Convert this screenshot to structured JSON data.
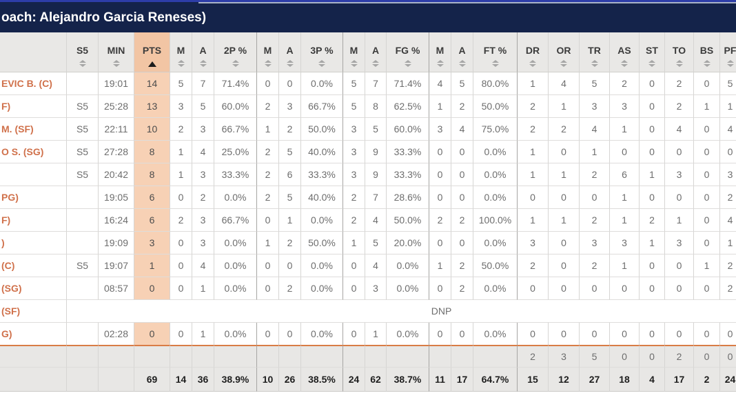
{
  "title_bar": {
    "title": "oach: Alejandro Garcia Reneses)"
  },
  "colors": {
    "navy": "#14234a",
    "top_blue": "#2d3da8",
    "light_line": "#a9b3c6",
    "header_bg": "#e9e8e6",
    "pts_header_bg": "#f2c5a4",
    "pts_cell_bg": "#f7d1b5",
    "name_orange": "#d0714b",
    "gray_bg": "#e8e7e5",
    "orange_divider": "#d97c45",
    "border_normal": "#d6d5d3",
    "border_group": "#a6a5a3",
    "row_line": "#dedddb"
  },
  "table": {
    "sorted_column": "PTS",
    "sort_direction": "asc",
    "column_labels": {
      "name": "",
      "s5": "S5",
      "min": "MIN",
      "pts": "PTS",
      "m": "M",
      "a": "A",
      "p2": "2P %",
      "p3": "3P %",
      "fg": "FG %",
      "ft": "FT %",
      "dr": "DR",
      "or": "OR",
      "tr": "TR",
      "as": "AS",
      "st": "ST",
      "to": "TO",
      "bs": "BS",
      "pf": "PF"
    },
    "dnp_label": "DNP",
    "players": [
      {
        "name": "EVIC B. (C)",
        "s5": "",
        "min": "19:01",
        "pts": "14",
        "stats": [
          "5",
          "7",
          "71.4%",
          "0",
          "0",
          "0.0%",
          "5",
          "7",
          "71.4%",
          "4",
          "5",
          "80.0%",
          "1",
          "4",
          "5",
          "2",
          "0",
          "2",
          "0",
          "5"
        ]
      },
      {
        "name": "F)",
        "s5": "S5",
        "min": "25:28",
        "pts": "13",
        "stats": [
          "3",
          "5",
          "60.0%",
          "2",
          "3",
          "66.7%",
          "5",
          "8",
          "62.5%",
          "1",
          "2",
          "50.0%",
          "2",
          "1",
          "3",
          "3",
          "0",
          "2",
          "1",
          "1"
        ]
      },
      {
        "name": "M. (SF)",
        "s5": "S5",
        "min": "22:11",
        "pts": "10",
        "stats": [
          "2",
          "3",
          "66.7%",
          "1",
          "2",
          "50.0%",
          "3",
          "5",
          "60.0%",
          "3",
          "4",
          "75.0%",
          "2",
          "2",
          "4",
          "1",
          "0",
          "4",
          "0",
          "4"
        ]
      },
      {
        "name": "O S. (SG)",
        "s5": "S5",
        "min": "27:28",
        "pts": "8",
        "stats": [
          "1",
          "4",
          "25.0%",
          "2",
          "5",
          "40.0%",
          "3",
          "9",
          "33.3%",
          "0",
          "0",
          "0.0%",
          "1",
          "0",
          "1",
          "0",
          "0",
          "0",
          "0",
          "0"
        ]
      },
      {
        "name": "",
        "s5": "S5",
        "min": "20:42",
        "pts": "8",
        "stats": [
          "1",
          "3",
          "33.3%",
          "2",
          "6",
          "33.3%",
          "3",
          "9",
          "33.3%",
          "0",
          "0",
          "0.0%",
          "1",
          "1",
          "2",
          "6",
          "1",
          "3",
          "0",
          "3"
        ]
      },
      {
        "name": "PG)",
        "s5": "",
        "min": "19:05",
        "pts": "6",
        "stats": [
          "0",
          "2",
          "0.0%",
          "2",
          "5",
          "40.0%",
          "2",
          "7",
          "28.6%",
          "0",
          "0",
          "0.0%",
          "0",
          "0",
          "0",
          "1",
          "0",
          "0",
          "0",
          "2"
        ]
      },
      {
        "name": "F)",
        "s5": "",
        "min": "16:24",
        "pts": "6",
        "stats": [
          "2",
          "3",
          "66.7%",
          "0",
          "1",
          "0.0%",
          "2",
          "4",
          "50.0%",
          "2",
          "2",
          "100.0%",
          "1",
          "1",
          "2",
          "1",
          "2",
          "1",
          "0",
          "4"
        ]
      },
      {
        "name": ")",
        "s5": "",
        "min": "19:09",
        "pts": "3",
        "stats": [
          "0",
          "3",
          "0.0%",
          "1",
          "2",
          "50.0%",
          "1",
          "5",
          "20.0%",
          "0",
          "0",
          "0.0%",
          "3",
          "0",
          "3",
          "3",
          "1",
          "3",
          "0",
          "1"
        ]
      },
      {
        "name": "(C)",
        "s5": "S5",
        "min": "19:07",
        "pts": "1",
        "stats": [
          "0",
          "4",
          "0.0%",
          "0",
          "0",
          "0.0%",
          "0",
          "4",
          "0.0%",
          "1",
          "2",
          "50.0%",
          "2",
          "0",
          "2",
          "1",
          "0",
          "0",
          "1",
          "2"
        ]
      },
      {
        "name": "(SG)",
        "s5": "",
        "min": "08:57",
        "pts": "0",
        "stats": [
          "0",
          "1",
          "0.0%",
          "0",
          "2",
          "0.0%",
          "0",
          "3",
          "0.0%",
          "0",
          "2",
          "0.0%",
          "0",
          "0",
          "0",
          "0",
          "0",
          "0",
          "0",
          "2"
        ]
      },
      {
        "name": "(SF)",
        "dnp": true
      },
      {
        "name": "G)",
        "s5": "",
        "min": "02:28",
        "pts": "0",
        "stats": [
          "0",
          "1",
          "0.0%",
          "0",
          "0",
          "0.0%",
          "0",
          "1",
          "0.0%",
          "0",
          "0",
          "0.0%",
          "0",
          "0",
          "0",
          "0",
          "0",
          "0",
          "0",
          "0"
        ]
      }
    ],
    "team_row": {
      "stats": [
        "",
        "",
        "",
        "",
        "",
        "",
        "",
        "",
        "",
        "",
        "",
        "",
        "2",
        "3",
        "5",
        "0",
        "0",
        "2",
        "0",
        "0"
      ]
    },
    "totals_row": {
      "pts": "69",
      "stats": [
        "14",
        "36",
        "38.9%",
        "10",
        "26",
        "38.5%",
        "24",
        "62",
        "38.7%",
        "11",
        "17",
        "64.7%",
        "15",
        "12",
        "27",
        "18",
        "4",
        "17",
        "2",
        "24"
      ]
    }
  }
}
